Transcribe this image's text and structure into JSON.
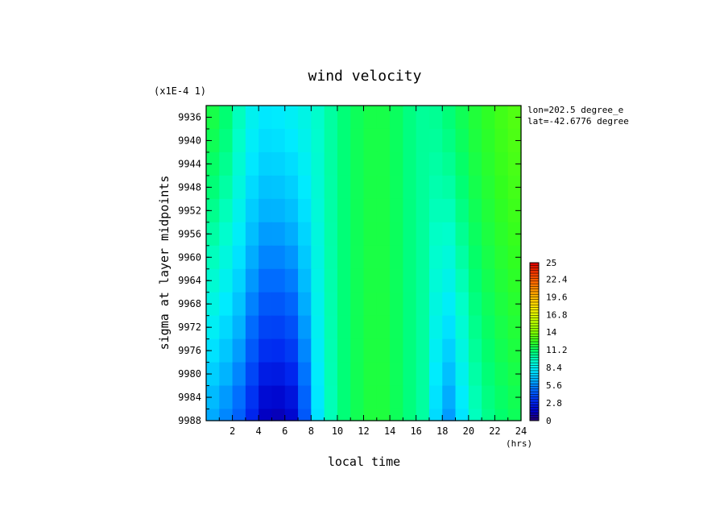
{
  "chart_data": {
    "type": "heatmap",
    "title": "wind velocity",
    "xlabel": "local time",
    "ylabel": "sigma at layer midpoints",
    "x_unit": "(hrs)",
    "y_scale_note": "(x1E-4 1)",
    "annotation": [
      "lon=202.5 degree_e",
      "lat=-42.6776 degree"
    ],
    "xlim": [
      0,
      24
    ],
    "ylim": [
      9934,
      9988
    ],
    "x_ticks": [
      "2",
      "4",
      "6",
      "8",
      "10",
      "12",
      "14",
      "16",
      "18",
      "20",
      "22",
      "24"
    ],
    "y_ticks": [
      "9936",
      "9940",
      "9944",
      "9948",
      "9952",
      "9956",
      "9960",
      "9964",
      "9968",
      "9972",
      "9976",
      "9980",
      "9984",
      "9988"
    ],
    "colorbar_ticks": [
      "25",
      "22.4",
      "19.6",
      "16.8",
      "14",
      "11.2",
      "8.4",
      "5.6",
      "2.8",
      "0"
    ],
    "colorbar_range": [
      0,
      25
    ],
    "x": [
      0,
      1,
      2,
      3,
      4,
      5,
      6,
      7,
      8,
      9,
      10,
      11,
      12,
      13,
      14,
      15,
      16,
      17,
      18,
      19,
      20,
      21,
      22,
      23,
      24
    ],
    "y": [
      9934,
      9938,
      9942,
      9946,
      9950,
      9954,
      9958,
      9962,
      9966,
      9970,
      9974,
      9978,
      9982,
      9986,
      9988
    ],
    "z_profiles": {
      "top": [
        12.0,
        11.5,
        10.5,
        9.0,
        8.0,
        8.0,
        8.2,
        8.5,
        9.0,
        9.8,
        10.5,
        11.2,
        11.6,
        11.8,
        11.6,
        11.0,
        10.4,
        10.2,
        10.6,
        11.2,
        11.8,
        12.2,
        12.6,
        13.0,
        13.2
      ],
      "bottom": [
        6.5,
        5.8,
        5.0,
        4.0,
        1.5,
        1.0,
        1.2,
        2.0,
        6.5,
        9.0,
        10.5,
        11.2,
        11.8,
        12.0,
        11.8,
        11.0,
        10.5,
        9.8,
        5.2,
        6.5,
        9.0,
        10.2,
        10.8,
        11.2,
        11.5
      ]
    }
  }
}
